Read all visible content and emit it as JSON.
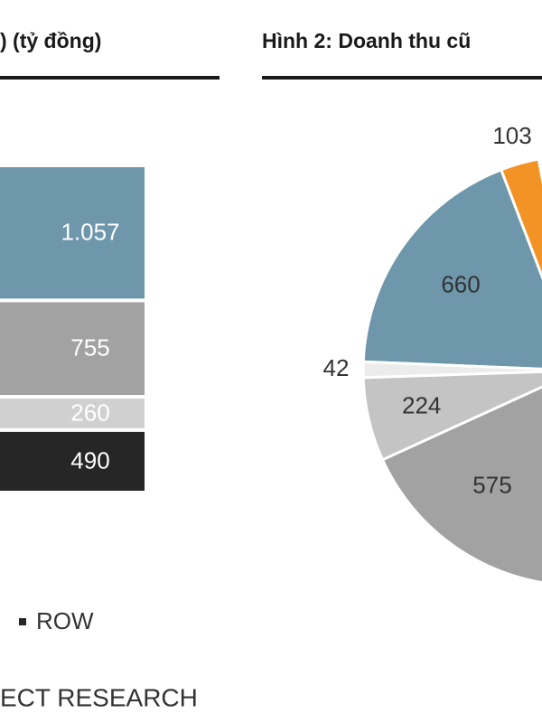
{
  "chart_data": [
    {
      "type": "stacked-bar",
      "title": ") (tỷ đồng)",
      "series": [
        {
          "name": "ROW",
          "color": "#262626",
          "values": [
            490
          ]
        },
        {
          "name": null,
          "color": "#d0d0d0",
          "values": [
            260
          ]
        },
        {
          "name": null,
          "color": "#a2a2a2",
          "values": [
            755
          ]
        },
        {
          "name": null,
          "color": "#6e97ac",
          "values": [
            1057
          ],
          "value_labels": [
            "1.057"
          ]
        }
      ],
      "source": "ECT RESEARCH"
    },
    {
      "type": "pie",
      "title": "Hình 2: Doanh thu cũ",
      "values": [
        103,
        660,
        42,
        224,
        575
      ],
      "colors": [
        "#f39325",
        "#6e97ac",
        "#ececec",
        "#c4c4c4",
        "#a2a2a2"
      ]
    }
  ]
}
